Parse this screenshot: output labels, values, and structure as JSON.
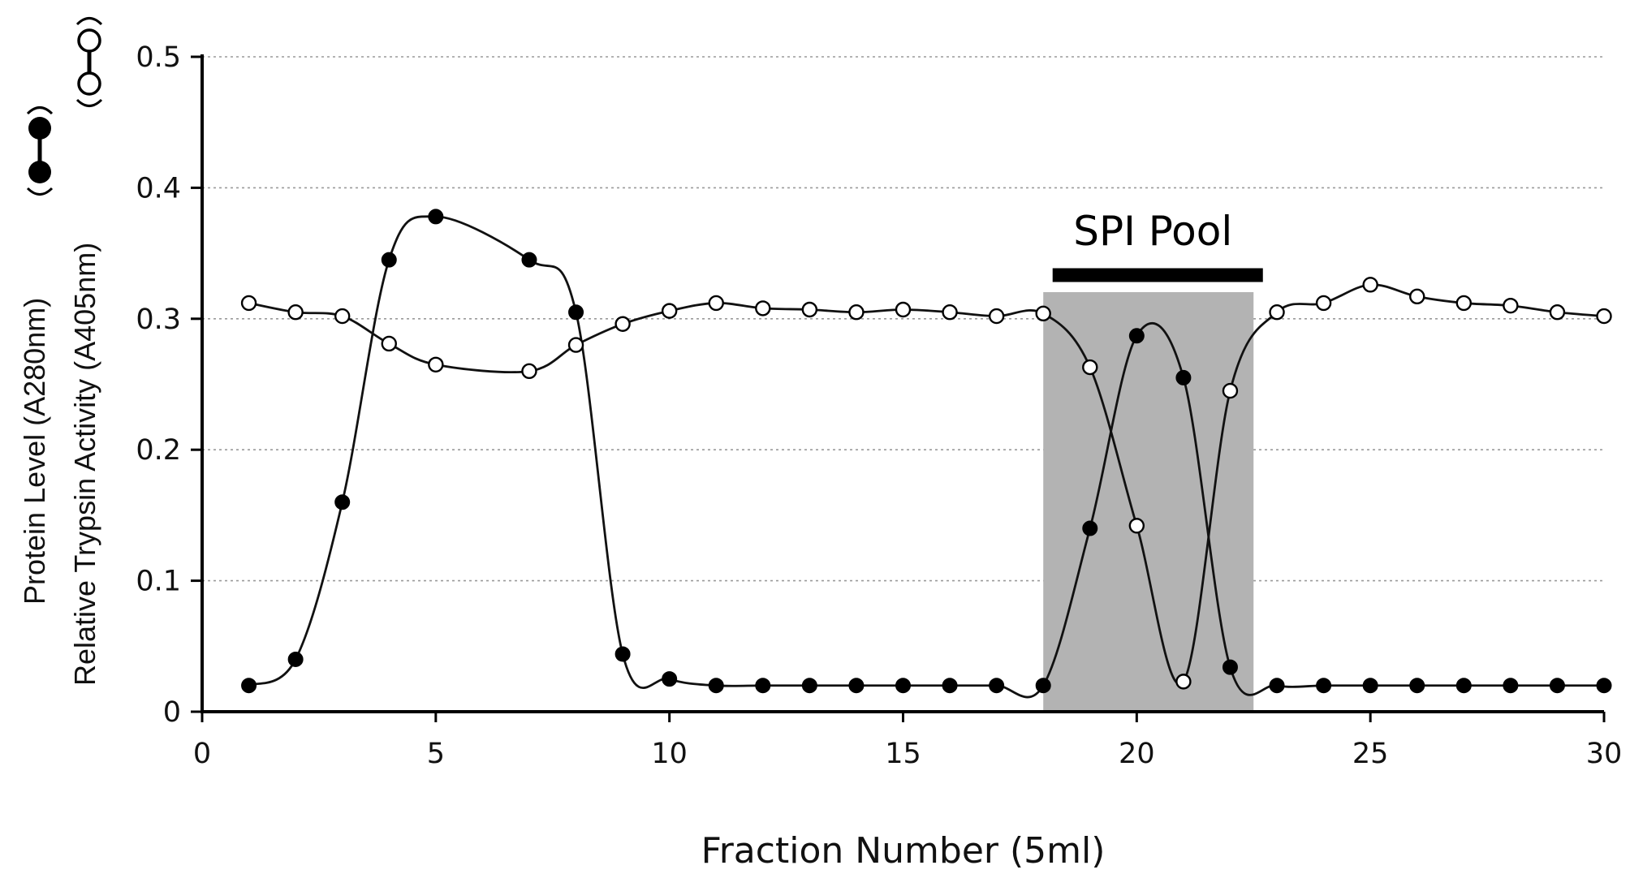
{
  "chart_data": {
    "type": "line",
    "x": [
      1,
      2,
      3,
      4,
      5,
      6,
      7,
      8,
      9,
      10,
      11,
      12,
      13,
      14,
      15,
      16,
      17,
      18,
      19,
      20,
      21,
      22,
      23,
      24,
      25,
      26,
      27,
      28,
      29,
      30
    ],
    "series": [
      {
        "marker": "filled-circle",
        "values": [
          0.02,
          0.04,
          0.16,
          0.345,
          0.378,
          null,
          0.345,
          0.305,
          0.044,
          0.025,
          0.02,
          0.02,
          0.02,
          0.02,
          0.02,
          0.02,
          0.02,
          0.02,
          0.14,
          0.287,
          0.255,
          0.034,
          0.02,
          0.02,
          0.02,
          0.02,
          0.02,
          0.02,
          0.02,
          0.02
        ]
      },
      {
        "marker": "open-circle",
        "values": [
          0.312,
          0.305,
          0.302,
          0.281,
          0.265,
          null,
          0.26,
          0.28,
          0.296,
          0.306,
          0.312,
          0.308,
          0.307,
          0.305,
          0.307,
          0.305,
          0.302,
          0.304,
          0.263,
          0.142,
          0.023,
          0.245,
          0.305,
          0.312,
          0.326,
          0.317,
          0.312,
          0.31,
          0.305,
          0.302
        ]
      }
    ],
    "xlabel": "Fraction Number (5ml)",
    "ylabel_line1": "Protein Level (A280nm)",
    "ylabel_line2": "Relative Trypsin Activity (A405nm)",
    "xlim": [
      0,
      30
    ],
    "ylim": [
      0,
      0.5
    ],
    "xticks": [
      0,
      5,
      10,
      15,
      20,
      25,
      30
    ],
    "xtick_labels": [
      "0",
      "5",
      "10",
      "15",
      "20",
      "25",
      "30"
    ],
    "yticks": [
      0,
      0.1,
      0.2,
      0.3,
      0.4,
      0.5
    ],
    "ytick_labels": [
      "0",
      "0.1",
      "0.2",
      "0.3",
      "0.4",
      "0.5"
    ],
    "grid": "horizontal-dotted",
    "shaded_region": {
      "x_start": 18,
      "x_end": 22.5,
      "color": "#b3b3b3"
    },
    "annotation": {
      "text": "SPI Pool",
      "x_start": 18.2,
      "x_end": 22.7
    }
  }
}
